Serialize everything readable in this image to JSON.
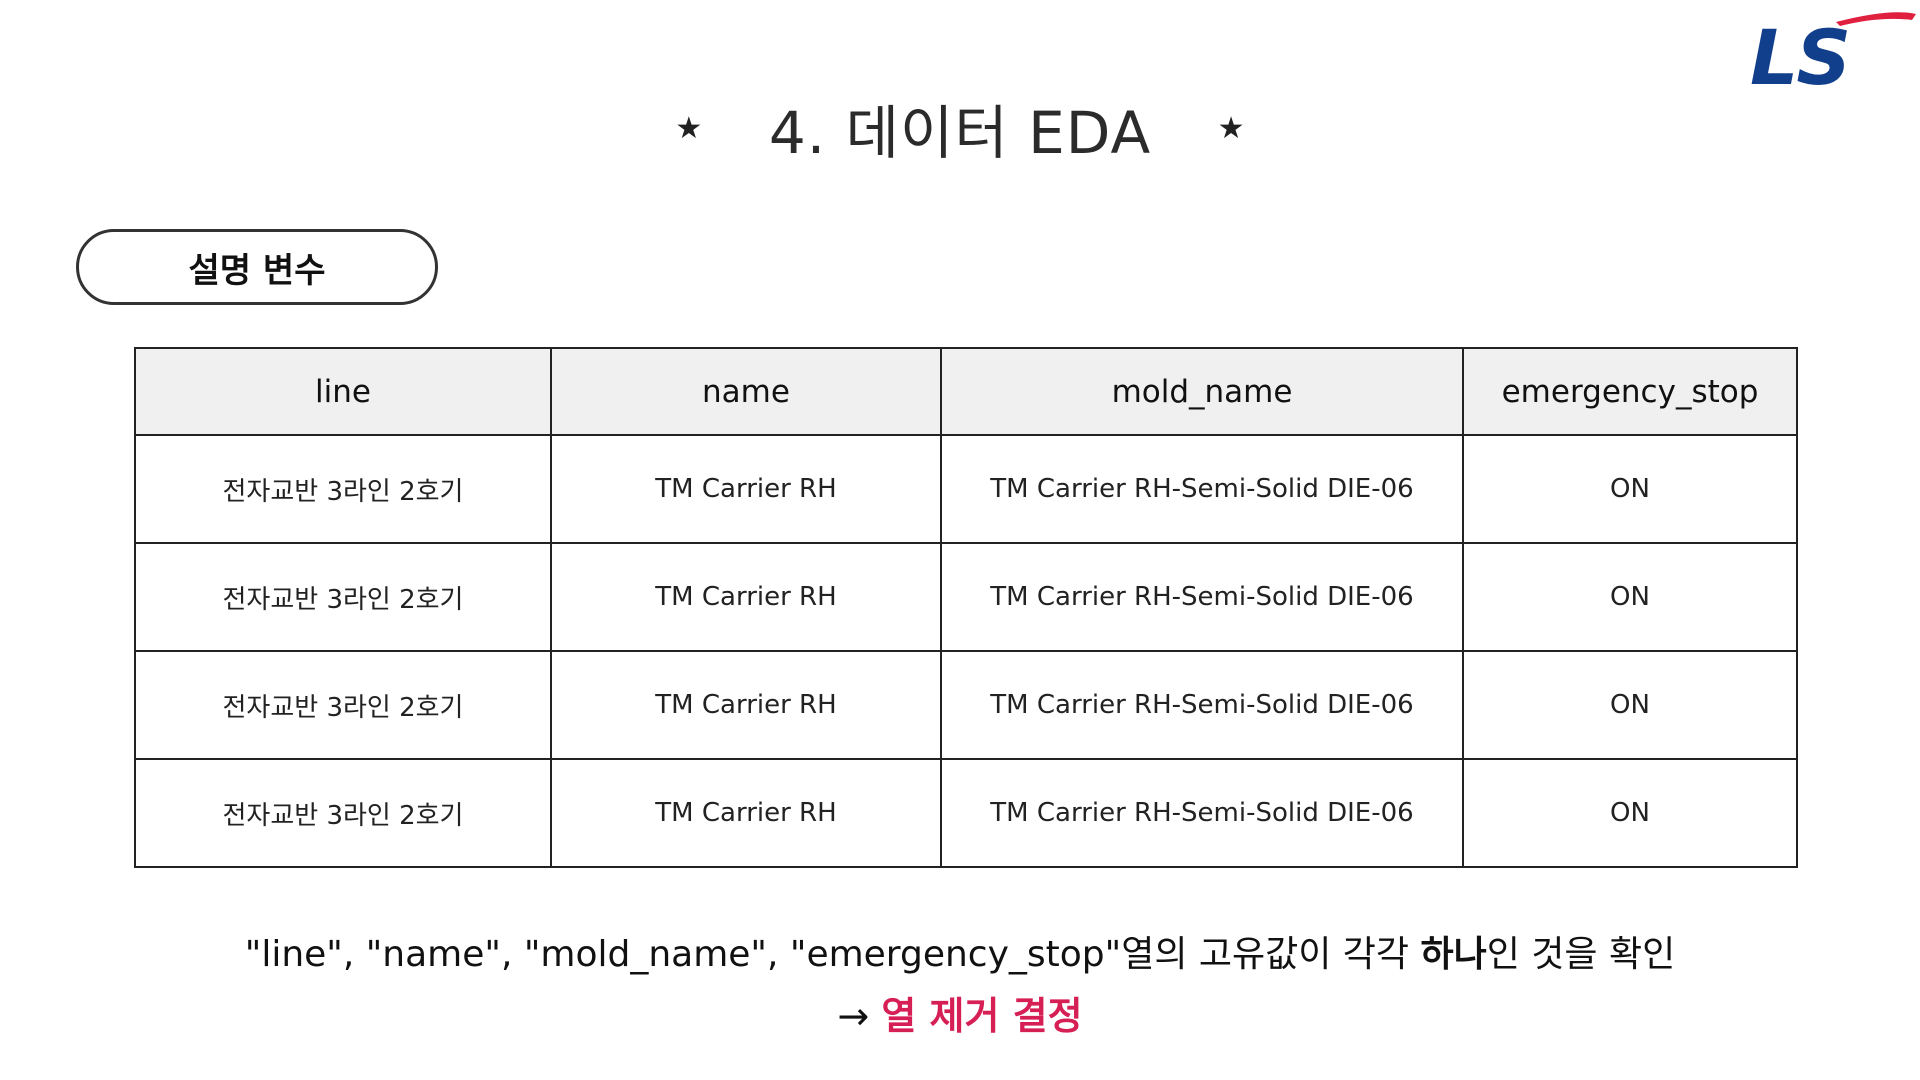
{
  "brand": {
    "logo_text": "LS",
    "logo_color": "#123f8c",
    "accent_color": "#e0203f"
  },
  "header": {
    "star_left": "★",
    "star_right": "★",
    "title": "4. 데이터 EDA"
  },
  "section": {
    "label": "설명 변수"
  },
  "table": {
    "columns": [
      "line",
      "name",
      "mold_name",
      "emergency_stop"
    ],
    "rows": [
      [
        "전자교반 3라인 2호기",
        "TM Carrier RH",
        "TM Carrier RH-Semi-Solid DIE-06",
        "ON"
      ],
      [
        "전자교반 3라인 2호기",
        "TM Carrier RH",
        "TM Carrier RH-Semi-Solid DIE-06",
        "ON"
      ],
      [
        "전자교반 3라인 2호기",
        "TM Carrier RH",
        "TM Carrier RH-Semi-Solid DIE-06",
        "ON"
      ],
      [
        "전자교반 3라인 2호기",
        "TM Carrier RH",
        "TM Carrier RH-Semi-Solid DIE-06",
        "ON"
      ]
    ],
    "header_bg": "#f0f0f0"
  },
  "summary": {
    "text_before": "\"line\", \"name\", \"mold_name\", \"emergency_stop\"열의 고유값이 각각 ",
    "text_bold": "하나",
    "text_after": "인 것을 확인"
  },
  "conclusion": {
    "arrow": "→ ",
    "text": "열 제거 결정",
    "color": "#d61f55"
  }
}
